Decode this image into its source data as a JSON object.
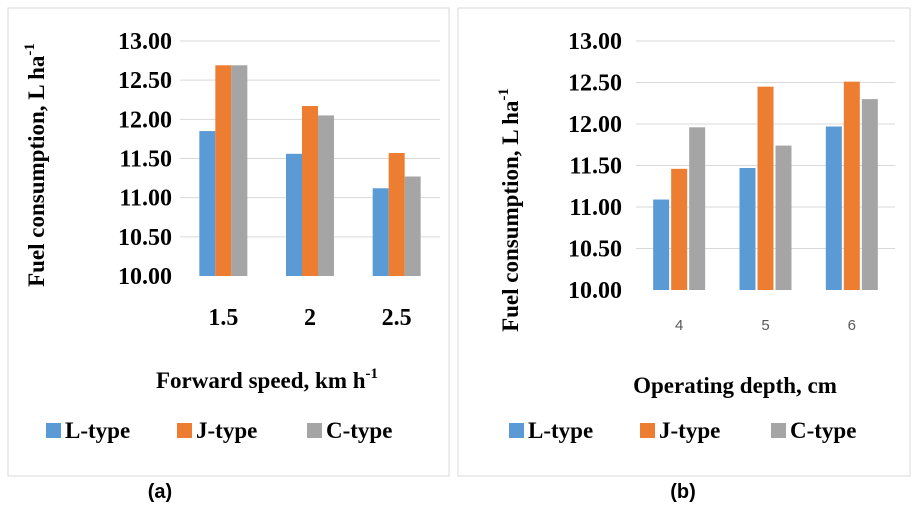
{
  "chart_data": [
    {
      "type": "bar",
      "panel_label": "(a)",
      "xlabel": "Forward speed, km h",
      "xlabel_sup": "-1",
      "ylabel": "Fuel consumption, L ha",
      "ylabel_sup": "-1",
      "categories": [
        "1.5",
        "2",
        "2.5"
      ],
      "series": [
        {
          "name": "L-type",
          "color": "#5b9bd5",
          "values": [
            11.85,
            11.56,
            11.12
          ]
        },
        {
          "name": "J-type",
          "color": "#ed7d31",
          "values": [
            12.69,
            12.17,
            11.57
          ]
        },
        {
          "name": "C-type",
          "color": "#a5a5a5",
          "values": [
            12.69,
            12.05,
            11.27
          ]
        }
      ],
      "ylim": [
        10.0,
        13.0
      ],
      "yticks": [
        "10.00",
        "10.50",
        "11.00",
        "11.50",
        "12.00",
        "12.50",
        "13.00"
      ],
      "grid": true,
      "legend_position": "bottom"
    },
    {
      "type": "bar",
      "panel_label": "(b)",
      "xlabel": "Operating depth, cm",
      "xlabel_sup": "",
      "ylabel": "Fuel consumption, L ha",
      "ylabel_sup": "-1",
      "categories": [
        "4",
        "5",
        "6"
      ],
      "series": [
        {
          "name": "L-type",
          "color": "#5b9bd5",
          "values": [
            11.09,
            11.47,
            11.97
          ]
        },
        {
          "name": "J-type",
          "color": "#ed7d31",
          "values": [
            11.46,
            12.45,
            12.51
          ]
        },
        {
          "name": "C-type",
          "color": "#a5a5a5",
          "values": [
            11.96,
            11.74,
            12.3
          ]
        }
      ],
      "ylim": [
        10.0,
        13.0
      ],
      "yticks": [
        "10.00",
        "10.50",
        "11.00",
        "11.50",
        "12.00",
        "12.50",
        "13.00"
      ],
      "grid": true,
      "legend_position": "bottom"
    }
  ]
}
